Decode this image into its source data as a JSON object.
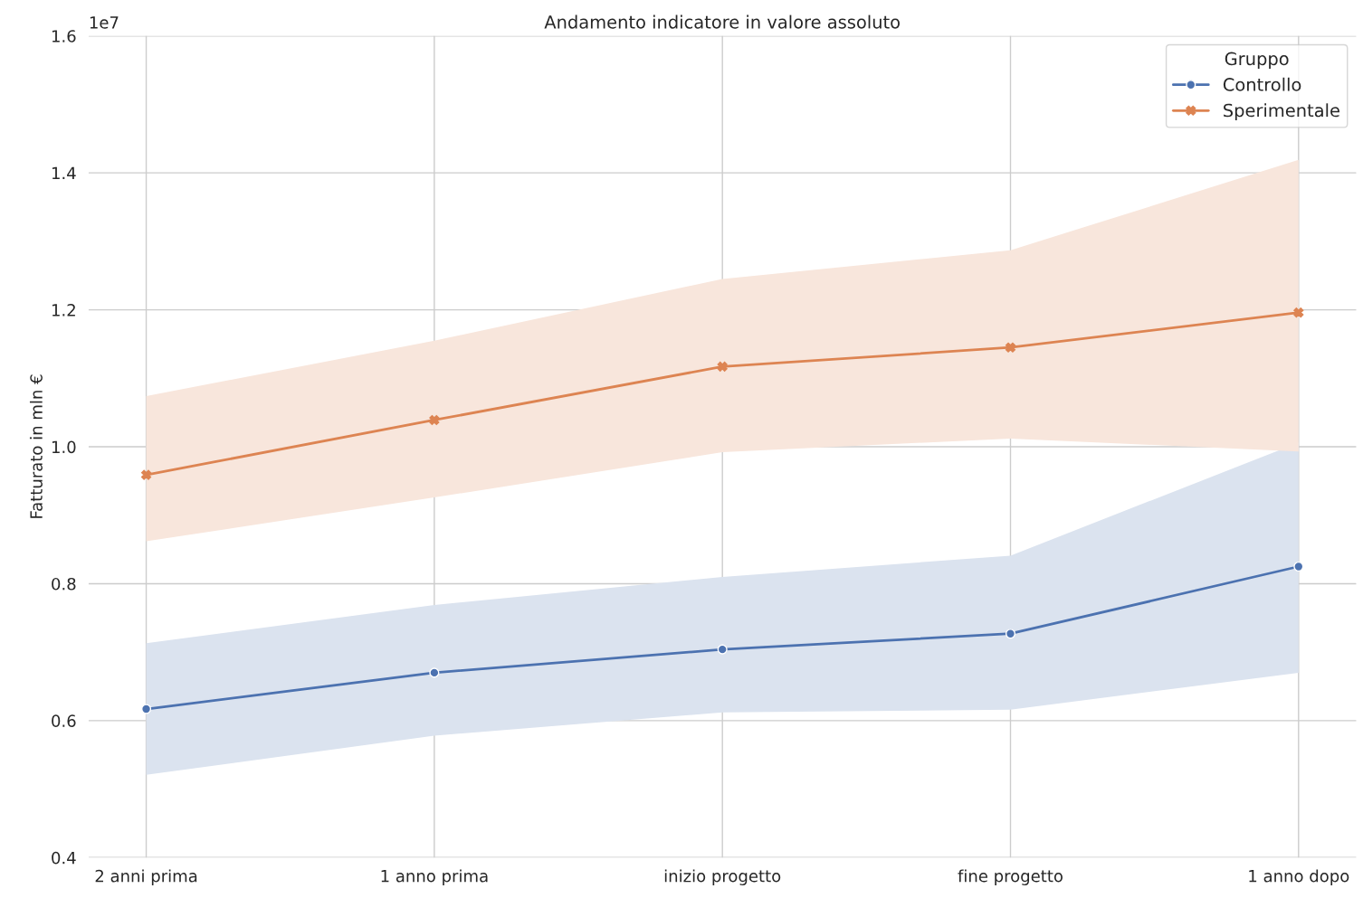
{
  "chart_data": {
    "type": "line",
    "title": "Andamento indicatore in valore assoluto",
    "ylabel": "Fatturato in mln €",
    "categories": [
      "2 anni prima",
      "1 anno prima",
      "inizio progetto",
      "fine progetto",
      "1 anno dopo"
    ],
    "series": [
      {
        "name": "Controllo",
        "color": "#4c72b0",
        "marker": "circle",
        "values": [
          0.617,
          0.67,
          0.704,
          0.727,
          0.825
        ],
        "lower": [
          0.521,
          0.578,
          0.612,
          0.616,
          0.67
        ],
        "upper": [
          0.713,
          0.769,
          0.81,
          0.841,
          1.006
        ]
      },
      {
        "name": "Sperimentale",
        "color": "#dd8452",
        "marker": "cross",
        "values": [
          0.959,
          1.039,
          1.117,
          1.145,
          1.196
        ],
        "lower": [
          0.862,
          0.926,
          0.992,
          1.012,
          0.993
        ],
        "upper": [
          1.074,
          1.155,
          1.245,
          1.287,
          1.419
        ]
      }
    ],
    "ylim": [
      0.4,
      1.6
    ],
    "yticks": [
      0.4,
      0.6,
      0.8,
      {
        "value": 1.0,
        "label": "1.0"
      },
      1.2,
      1.4,
      1.6
    ],
    "annotations": [
      "1e7"
    ],
    "legend_title": "Gruppo",
    "legend": "top right",
    "grid": true,
    "line_style": "solid"
  }
}
